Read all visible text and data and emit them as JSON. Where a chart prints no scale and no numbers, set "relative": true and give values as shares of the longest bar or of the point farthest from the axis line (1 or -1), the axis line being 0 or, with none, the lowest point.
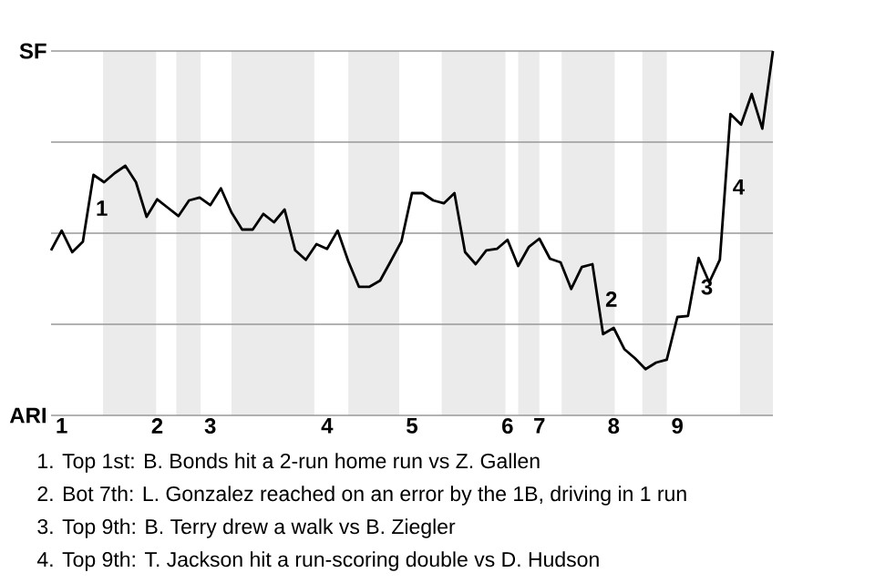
{
  "chart_data": {
    "type": "line",
    "relative": true,
    "categories": [
      null,
      "1",
      null,
      null,
      null,
      null,
      null,
      null,
      null,
      null,
      "2",
      null,
      null,
      null,
      null,
      "3",
      null,
      null,
      null,
      null,
      null,
      null,
      null,
      null,
      null,
      null,
      "4",
      null,
      null,
      null,
      null,
      null,
      null,
      null,
      "5",
      null,
      null,
      null,
      null,
      null,
      null,
      null,
      null,
      "6",
      null,
      null,
      "7",
      null,
      null,
      null,
      null,
      null,
      null,
      "8",
      null,
      null,
      null,
      null,
      null,
      "9",
      null,
      null,
      null,
      null,
      null,
      null,
      null,
      null,
      null
    ],
    "series": [
      {
        "color": "#000000",
        "values": [
          0.453,
          0.507,
          0.448,
          0.477,
          0.66,
          0.64,
          0.665,
          0.685,
          0.64,
          0.545,
          0.593,
          0.57,
          0.547,
          0.59,
          0.598,
          0.577,
          0.623,
          0.557,
          0.51,
          0.51,
          0.553,
          0.53,
          0.565,
          0.453,
          0.427,
          0.47,
          0.457,
          0.507,
          0.423,
          0.353,
          0.353,
          0.37,
          0.423,
          0.477,
          0.61,
          0.61,
          0.59,
          0.582,
          0.61,
          0.448,
          0.415,
          0.453,
          0.457,
          0.482,
          0.41,
          0.462,
          0.485,
          0.43,
          0.42,
          0.347,
          0.407,
          0.415,
          0.223,
          0.24,
          0.182,
          0.157,
          0.127,
          0.145,
          0.153,
          0.27,
          0.273,
          0.432,
          0.365,
          0.427,
          0.827,
          0.798,
          0.882,
          0.787,
          1.0
        ]
      }
    ],
    "ref_lines": [
      {
        "axis": "y",
        "value": 1,
        "label": "SF",
        "color": "#999999"
      },
      {
        "axis": "y",
        "value": 0.75,
        "color": "#999999"
      },
      {
        "axis": "y",
        "value": 0.5,
        "color": "#999999"
      },
      {
        "axis": "y",
        "value": 0.25,
        "color": "#999999"
      },
      {
        "axis": "y",
        "value": 0,
        "label": "ARI",
        "color": "#999999"
      }
    ],
    "annotations": [
      {
        "text": "1",
        "y": 0.66
      },
      {
        "text": "2",
        "y": 0.223
      },
      {
        "text": "3",
        "y": 0.432
      },
      {
        "text": "4",
        "y": 0.827
      },
      "1. Top 1st: B. Bonds hit a 2-run home run vs Z. Gallen",
      "2. Bot 7th: L. Gonzalez reached on an error by the 1B, driving in 1 run",
      "3. Top 9th: B. Terry drew a walk vs B. Ziegler",
      "4. Top 9th: T. Jackson hit a run-scoring double vs D. Hudson"
    ]
  }
}
